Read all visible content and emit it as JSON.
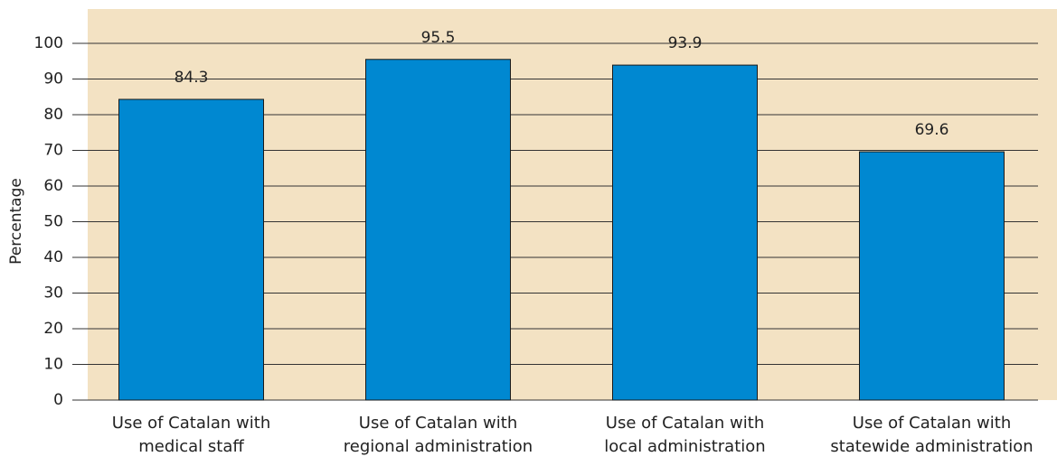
{
  "chart_data": {
    "type": "bar",
    "y_label": "Percentage",
    "categories": [
      "Use of Catalan with\nmedical staff",
      "Use of Catalan with\nregional administration",
      "Use of Catalan with\nlocal administration",
      "Use of Catalan with\nstatewide administration"
    ],
    "values": [
      84.3,
      95.5,
      93.9,
      69.6
    ],
    "color": "#0088d1",
    "ylim": [
      0,
      100
    ],
    "yticks": [
      0,
      10,
      20,
      30,
      40,
      50,
      60,
      70,
      80,
      90,
      100
    ],
    "grid": true
  }
}
